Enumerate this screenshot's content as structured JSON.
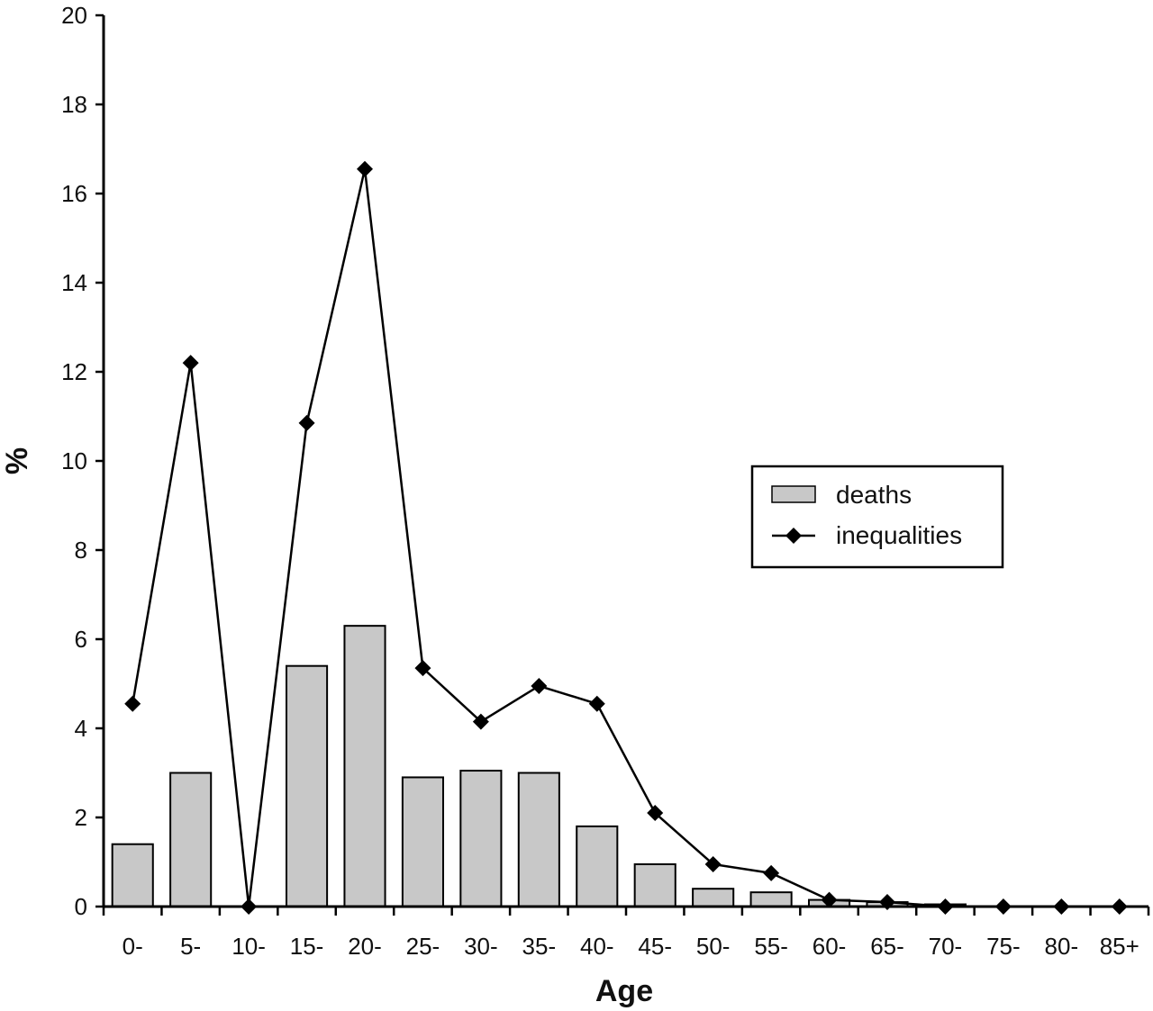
{
  "chart_data": {
    "type": "bar",
    "categories": [
      "0-",
      "5-",
      "10-",
      "15-",
      "20-",
      "25-",
      "30-",
      "35-",
      "40-",
      "45-",
      "50-",
      "55-",
      "60-",
      "65-",
      "70-",
      "75-",
      "80-",
      "85+"
    ],
    "series": [
      {
        "name": "deaths",
        "type": "bar",
        "values": [
          1.4,
          3.0,
          0.0,
          5.4,
          6.3,
          2.9,
          3.05,
          3.0,
          1.8,
          0.95,
          0.4,
          0.32,
          0.15,
          0.1,
          0.05,
          0.0,
          0.0,
          0.0
        ]
      },
      {
        "name": "inequalities",
        "type": "line",
        "values": [
          4.55,
          12.2,
          0.0,
          10.85,
          16.55,
          5.35,
          4.15,
          4.95,
          4.55,
          2.1,
          0.95,
          0.75,
          0.15,
          0.1,
          0.0,
          0.0,
          0.0,
          0.0
        ]
      }
    ],
    "title": "",
    "xlabel": "Age",
    "ylabel": "%",
    "ylim": [
      0,
      20
    ],
    "yticks": [
      0,
      2,
      4,
      6,
      8,
      10,
      12,
      14,
      16,
      18,
      20
    ],
    "grid": false,
    "legend": "right",
    "colors": {
      "bar_fill": "#c8c8c8",
      "bar_stroke": "#000000",
      "line": "#000000",
      "axis": "#000000"
    }
  }
}
